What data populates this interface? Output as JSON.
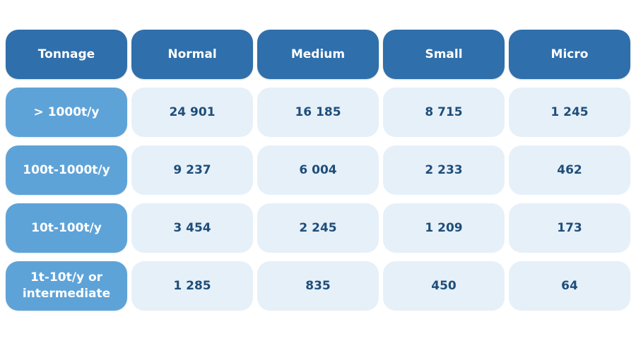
{
  "chart_data": {
    "type": "table",
    "columns": [
      "Tonnage",
      "Normal",
      "Medium",
      "Small",
      "Micro"
    ],
    "rows": [
      {
        "label": "> 1000t/y",
        "values": [
          "24 901",
          "16 185",
          "8 715",
          "1 245"
        ]
      },
      {
        "label": "100t-1000t/y",
        "values": [
          "9 237",
          "6 004",
          "2 233",
          "462"
        ]
      },
      {
        "label": "10t-100t/y",
        "values": [
          "3 454",
          "2 245",
          "1 209",
          "173"
        ]
      },
      {
        "label": "1t-10t/y or intermediate",
        "values": [
          "1 285",
          "835",
          "450",
          "64"
        ]
      }
    ],
    "colors": {
      "header": "#2f6fab",
      "row_header": "#5ea3d8",
      "value_cell": "#e6f0f9",
      "value_text": "#1f4e79"
    }
  }
}
